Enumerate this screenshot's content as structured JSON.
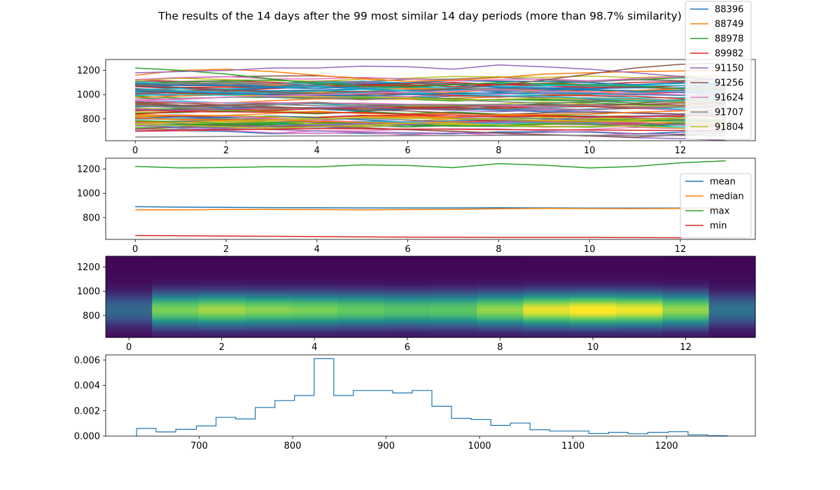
{
  "figure": {
    "title": "The results of the 14 days after the 99 most similar 14 day periods (more than 98.7% similarity)"
  },
  "colors": {
    "cycle": [
      "#1f77b4",
      "#ff7f0e",
      "#2ca02c",
      "#d62728",
      "#9467bd",
      "#8c564b",
      "#e377c2",
      "#7f7f7f",
      "#bcbd22",
      "#17becf"
    ],
    "histogram": "#1f77b4"
  },
  "chart_data": [
    {
      "type": "line",
      "note_series": "99 series total; only the last 9 legend entries are visible; y values for the 9 legend-visible series are approximate",
      "x": [
        0,
        1,
        2,
        3,
        4,
        5,
        6,
        7,
        8,
        9,
        10,
        11,
        12,
        13
      ],
      "xticks": [
        0,
        2,
        4,
        6,
        8,
        10,
        12
      ],
      "yticks": [
        800,
        1000,
        1200
      ],
      "xlim": [
        -0.65,
        13.65
      ],
      "ylim": [
        620,
        1290
      ],
      "legend": [
        "88396",
        "88749",
        "88978",
        "89982",
        "91150",
        "91256",
        "91624",
        "91707",
        "91804"
      ],
      "legend_colors": [
        "#1f77b4",
        "#ff7f0e",
        "#2ca02c",
        "#d62728",
        "#9467bd",
        "#8c564b",
        "#e377c2",
        "#7f7f7f",
        "#bcbd22"
      ],
      "legend_position": "upper right",
      "series": [
        {
          "name": "88396",
          "values": [
            1030,
            1020,
            1010,
            1000,
            995,
            990,
            1000,
            1010,
            1015,
            1010,
            1005,
            1000,
            995,
            990
          ]
        },
        {
          "name": "88749",
          "values": [
            1160,
            1200,
            1210,
            1190,
            1160,
            1130,
            1110,
            1120,
            1140,
            1170,
            1180,
            1190,
            1195,
            1200
          ]
        },
        {
          "name": "88978",
          "values": [
            1220,
            1200,
            1170,
            1130,
            1090,
            1070,
            1060,
            1080,
            1100,
            1090,
            1080,
            1070,
            1050,
            1040
          ]
        },
        {
          "name": "89982",
          "values": [
            700,
            705,
            710,
            715,
            720,
            718,
            716,
            714,
            712,
            710,
            708,
            706,
            704,
            700
          ]
        },
        {
          "name": "91150",
          "values": [
            1180,
            1190,
            1200,
            1220,
            1220,
            1235,
            1230,
            1210,
            1245,
            1230,
            1210,
            1180,
            1150,
            1120
          ]
        },
        {
          "name": "91256",
          "values": [
            1080,
            1060,
            1040,
            1020,
            1010,
            1000,
            1020,
            1050,
            1080,
            1120,
            1170,
            1220,
            1250,
            1260
          ]
        },
        {
          "name": "91624",
          "values": [
            950,
            960,
            980,
            990,
            1000,
            1010,
            1020,
            1030,
            1040,
            1030,
            1020,
            1010,
            1000,
            990
          ]
        },
        {
          "name": "91707",
          "values": [
            650,
            652,
            655,
            658,
            660,
            660,
            662,
            663,
            664,
            665,
            665,
            664,
            663,
            660
          ]
        },
        {
          "name": "91804",
          "values": [
            760,
            770,
            780,
            790,
            800,
            810,
            805,
            800,
            795,
            790,
            785,
            780,
            775,
            770
          ]
        }
      ]
    },
    {
      "type": "line",
      "x": [
        0,
        1,
        2,
        3,
        4,
        5,
        6,
        7,
        8,
        9,
        10,
        11,
        12,
        13
      ],
      "xticks": [
        0,
        2,
        4,
        6,
        8,
        10,
        12
      ],
      "yticks": [
        800,
        1000,
        1200
      ],
      "xlim": [
        -0.65,
        13.65
      ],
      "ylim": [
        620,
        1290
      ],
      "legend_position": "right",
      "series": [
        {
          "name": "mean",
          "values": [
            890,
            886,
            884,
            882,
            881,
            880,
            880,
            880,
            881,
            880,
            879,
            878,
            879,
            880
          ]
        },
        {
          "name": "median",
          "values": [
            864,
            864,
            867,
            867,
            866,
            864,
            866,
            868,
            873,
            876,
            875,
            874,
            876,
            878
          ]
        },
        {
          "name": "max",
          "values": [
            1222,
            1210,
            1213,
            1220,
            1218,
            1235,
            1230,
            1212,
            1245,
            1232,
            1210,
            1222,
            1252,
            1268
          ]
        },
        {
          "name": "min",
          "values": [
            652,
            650,
            648,
            646,
            643,
            641,
            639,
            638,
            637,
            637,
            637,
            635,
            634,
            633
          ]
        }
      ]
    },
    {
      "type": "heatmap",
      "xticks": [
        0,
        2,
        4,
        6,
        8,
        10,
        12
      ],
      "yticks": [
        800,
        1000,
        1200
      ],
      "xlim": [
        -0.5,
        13.5
      ],
      "ylim": [
        620,
        1290
      ],
      "columns": 14,
      "colormap": "viridis",
      "peak_value": 850,
      "peak_intensity_by_column": [
        0.32,
        0.78,
        0.84,
        0.8,
        0.78,
        0.74,
        0.7,
        0.72,
        0.82,
        0.95,
        1.0,
        0.96,
        0.82,
        0.36
      ]
    },
    {
      "type": "histogram",
      "xticks": [
        700,
        800,
        900,
        1000,
        1100,
        1200
      ],
      "yticks": [
        "0.000",
        "0.002",
        "0.004",
        "0.006"
      ],
      "xlim": [
        600,
        1295
      ],
      "ylim": [
        0,
        0.0064
      ],
      "bin_edges": [
        633,
        654,
        675,
        697,
        718,
        739,
        760,
        781,
        802,
        823,
        844,
        865,
        886,
        907,
        928,
        949,
        970,
        991,
        1012,
        1033,
        1054,
        1075,
        1096,
        1117,
        1138,
        1159,
        1180,
        1202,
        1223,
        1244,
        1265
      ],
      "densities": [
        0.0006,
        0.00033,
        0.00053,
        0.0008,
        0.00148,
        0.00135,
        0.00225,
        0.0028,
        0.0032,
        0.0061,
        0.0032,
        0.0036,
        0.0036,
        0.0034,
        0.0036,
        0.00235,
        0.0014,
        0.0013,
        0.00085,
        0.00103,
        0.0005,
        0.0004,
        0.0004,
        0.0002,
        0.0003,
        0.00018,
        0.0003,
        0.00035,
        0.0001,
        3e-05
      ]
    }
  ]
}
